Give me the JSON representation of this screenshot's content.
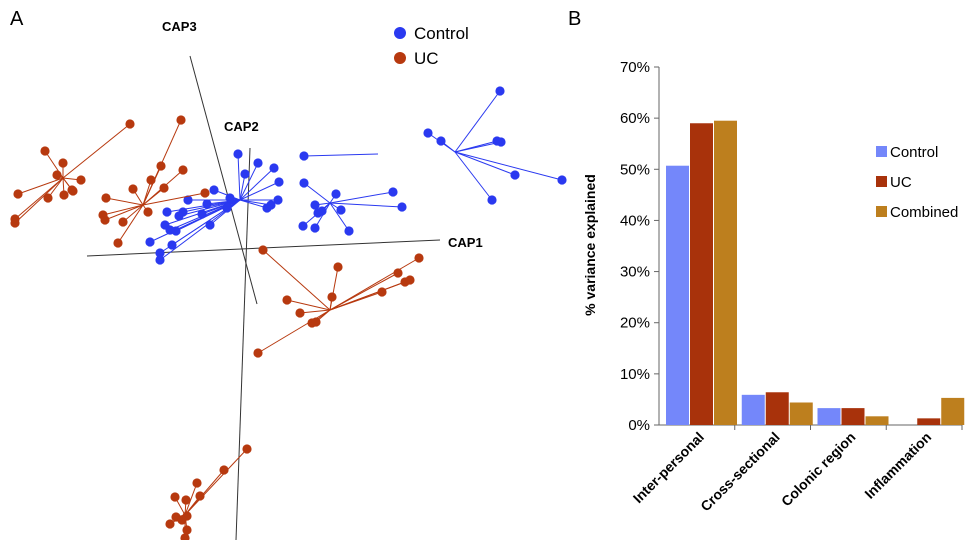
{
  "panels": {
    "a_letter": "A",
    "b_letter": "B"
  },
  "colors": {
    "control": "#2a39f0",
    "uc": "#b7390f",
    "control_bar": "#7487fa",
    "uc_bar": "#a8320b",
    "combined_bar": "#bd7f1e",
    "axis": "#555555"
  },
  "chart_data": [
    {
      "type": "scatter",
      "panel": "A",
      "axes": [
        "CAP1",
        "CAP2",
        "CAP3"
      ],
      "legend": [
        "Control",
        "UC"
      ],
      "legend_placement": "top-center",
      "grid": false
    },
    {
      "type": "bar",
      "panel": "B",
      "ylabel": "% variance explained",
      "ylim": [
        0,
        70
      ],
      "yticks": [
        "0%",
        "10%",
        "20%",
        "30%",
        "40%",
        "50%",
        "60%",
        "70%"
      ],
      "categories": [
        "Inter-personal",
        "Cross-sectional",
        "Colonic region",
        "Inflammation"
      ],
      "series": [
        {
          "name": "Control",
          "values": [
            50.7,
            5.9,
            3.3,
            0.0
          ]
        },
        {
          "name": "UC",
          "values": [
            59.0,
            6.4,
            3.3,
            1.3
          ]
        },
        {
          "name": "Combined",
          "values": [
            59.5,
            4.4,
            1.7,
            5.3
          ]
        }
      ],
      "legend_placement": "right",
      "grid": false
    }
  ]
}
